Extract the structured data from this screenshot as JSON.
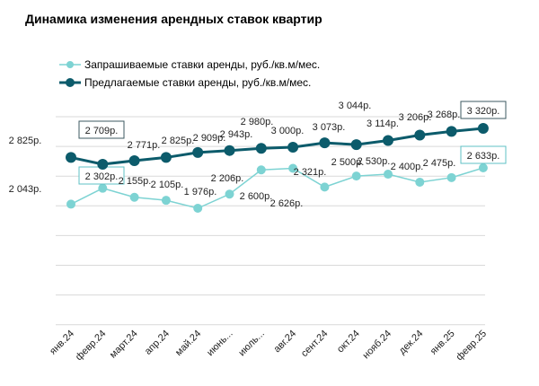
{
  "chart_data": {
    "type": "line",
    "title": "Динамика изменения арендных ставок квартир",
    "categories": [
      "янв.24",
      "февр.24",
      "март.24",
      "апр.24",
      "май.24",
      "июнь...",
      "июль...",
      "авг.24",
      "сент.24",
      "окт.24",
      "нояб.24",
      "дек.24",
      "янв.25",
      "февр.25"
    ],
    "series": [
      {
        "name": "Запрашиваемые ставки аренды, руб./кв.м/мес.",
        "color": "#7dd3d3",
        "values": [
          2043,
          2302,
          2155,
          2105,
          1976,
          2206,
          2600,
          2626,
          2321,
          2500,
          2530,
          2400,
          2475,
          2633
        ],
        "labels": [
          "2 043р.",
          "2 302р.",
          "2 155р.",
          "2 105р.",
          "1 976р.",
          "2 206р.",
          "2 600р.",
          "2 626р.",
          "2 321р.",
          "2 500р.",
          "2 530р.",
          "2 400р.",
          "2 475р.",
          "2 633р."
        ]
      },
      {
        "name": "Предлагаемые ставки аренды, руб./кв.м/мес.",
        "color": "#0c5b6b",
        "values": [
          2825,
          2709,
          2771,
          2825,
          2909,
          2943,
          2980,
          3000,
          3073,
          3044,
          3114,
          3206,
          3268,
          3320
        ],
        "labels": [
          "2 825р.",
          "2 709р.",
          "2 771р.",
          "2 825р.",
          "2 909р.",
          "2 943р.",
          "2 980р.",
          "3 000р.",
          "3 073р.",
          "3 044р.",
          "3 114р.",
          "3 206р.",
          "3 268р.",
          "3 320р."
        ]
      }
    ],
    "grid": true,
    "legend": "top-left",
    "boxed_labels": [
      1,
      13
    ]
  }
}
